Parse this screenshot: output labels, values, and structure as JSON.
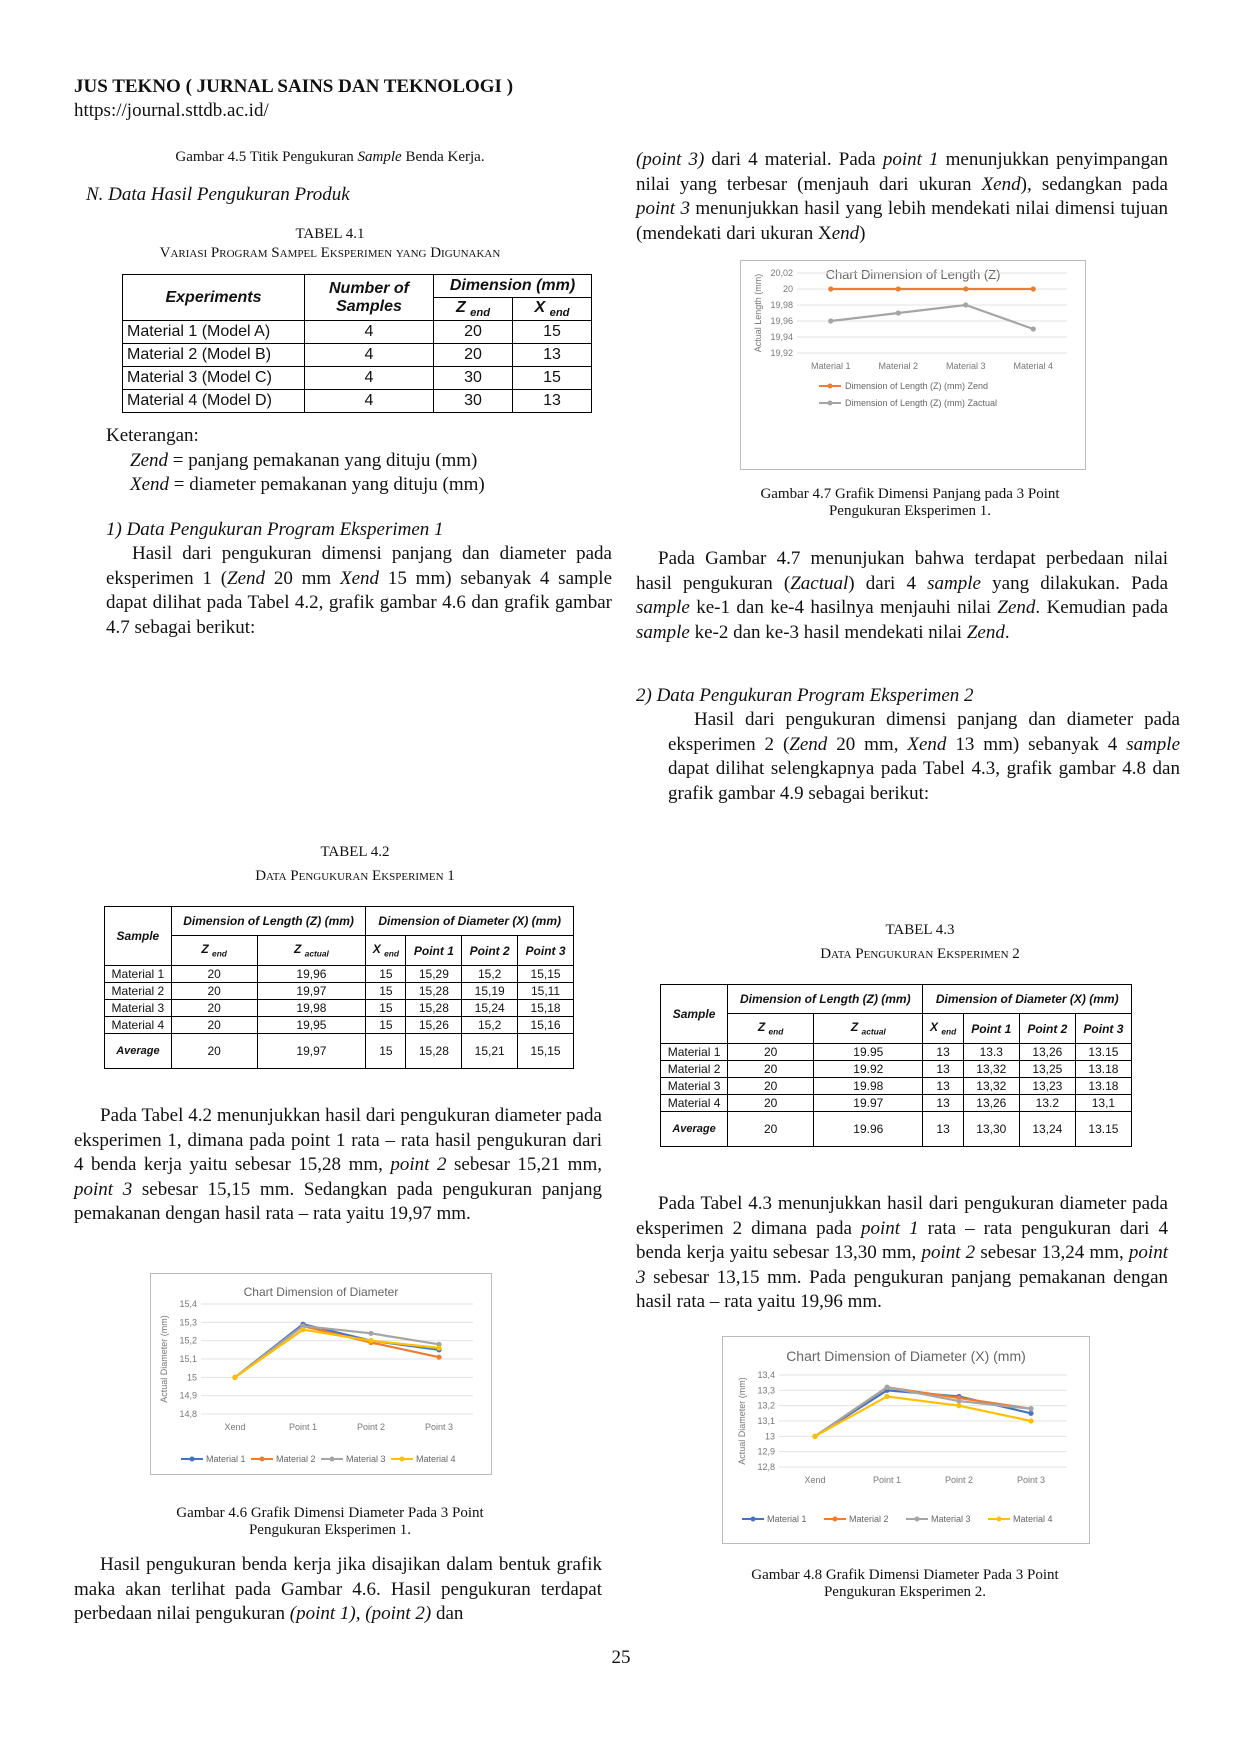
{
  "header": {
    "journal": "JUS TEKNO ( JURNAL SAINS DAN TEKNOLOGI )",
    "url": "https://journal.sttdb.ac.id/"
  },
  "fig45_caption": {
    "pre": "Gambar 4.5 Titik Pengukuran ",
    "em": "Sample",
    "post": " Benda Kerja."
  },
  "section_n": "N.   Data Hasil Pengukuran Produk",
  "table41": {
    "label": "TABEL 4.1",
    "title": "Variasi Program Sampel Eksperimen yang Digunakan",
    "h_experiments": "Experiments",
    "h_samples": "Number of Samples",
    "h_dimension": "Dimension (mm)",
    "h_z": "Z",
    "h_x": "X",
    "h_sub": "end",
    "rows": [
      [
        "Material 1 (Model A)",
        "4",
        "20",
        "15"
      ],
      [
        "Material 2 (Model B)",
        "4",
        "20",
        "13"
      ],
      [
        "Material 3 (Model C)",
        "4",
        "30",
        "15"
      ],
      [
        "Material 4 (Model D)",
        "4",
        "30",
        "13"
      ]
    ]
  },
  "keterangan": {
    "title": "Keterangan:",
    "zend_term": "Zend",
    "zend_def": " = panjang pemakanan yang dituju (mm)",
    "xend_term": "Xend",
    "xend_def": " = diameter pemakanan yang dituju (mm)"
  },
  "sub1_heading": "1)   Data Pengukuran Program Eksperimen 1",
  "sub1_p": {
    "a": "Hasil dari pengukuran dimensi panjang dan diameter pada eksperimen 1 (",
    "b": "Zend",
    "c": " 20 mm ",
    "d": "Xend",
    "e": " 15 mm) sebanyak 4 sample dapat dilihat pada Tabel 4.2, grafik gambar 4.6 dan grafik gambar 4.7 sebagai berikut:"
  },
  "table42": {
    "label": "TABEL 4.2",
    "title": "Data Pengukuran Eksperimen 1",
    "h_sample": "Sample",
    "h_length": "Dimension of Length (Z) (mm)",
    "h_diameter": "Dimension of Diameter (X) (mm)",
    "sub": {
      "zend": "end",
      "zact": "actual",
      "xend": "end"
    },
    "h_point1": "Point 1",
    "h_point2": "Point 2",
    "h_point3": "Point 3",
    "rows": [
      [
        "Material 1",
        "20",
        "19,96",
        "15",
        "15,29",
        "15,2",
        "15,15"
      ],
      [
        "Material 2",
        "20",
        "19,97",
        "15",
        "15,28",
        "15,19",
        "15,11"
      ],
      [
        "Material 3",
        "20",
        "19,98",
        "15",
        "15,28",
        "15,24",
        "15,18"
      ],
      [
        "Material 4",
        "20",
        "19,95",
        "15",
        "15,26",
        "15,2",
        "15,16"
      ]
    ],
    "avg": [
      "Average",
      "20",
      "19,97",
      "15",
      "15,28",
      "15,21",
      "15,15"
    ]
  },
  "p_t42": {
    "a": "Pada Tabel 4.2 menunjukkan hasil dari pengukuran diameter pada eksperimen 1, dimana pada point 1 rata – rata hasil pengukuran dari 4 benda kerja yaitu sebesar 15,28 mm, ",
    "b": "point 2",
    "c": " sebesar 15,21 mm, ",
    "d": "point 3",
    "e": " sebesar 15,15 mm. Sedangkan pada pengukuran panjang pemakanan dengan hasil rata – rata yaitu 19,97 mm."
  },
  "fig46_caption": {
    "l1": "Gambar 4.6 Grafik Dimensi Diameter Pada 3 Point",
    "l2": "Pengukuran Eksperimen 1."
  },
  "p_fig46": {
    "a": "Hasil pengukuran benda kerja jika disajikan dalam bentuk grafik maka akan terlihat pada Gambar 4.6. Hasil pengukuran terdapat perbedaan nilai pengukuran ",
    "b": "(point 1), (point 2)",
    "c": " dan"
  },
  "p_right_top": {
    "a": "(point 3)",
    "b": " dari 4 material. Pada ",
    "c": "point 1",
    "d": " menunjukkan penyimpangan nilai yang terbesar (menjauh dari ukuran ",
    "e": "Xend",
    "f": "), sedangkan pada ",
    "g": "point 3",
    "h": " menunjukkan hasil yang lebih mendekati nilai dimensi tujuan (mendekati dari ukuran X",
    "i": "end",
    "j": ")"
  },
  "fig47_caption": {
    "l1": "Gambar 4.7 Grafik Dimensi Panjang pada 3 Point",
    "l2": "Pengukuran Eksperimen 1."
  },
  "p_fig47": {
    "a": "Pada Gambar 4.7 menunjukan bahwa terdapat perbedaan nilai hasil pengukuran (",
    "b": "Zactual",
    "c": ") dari 4 ",
    "d": "sample",
    "e": " yang dilakukan. Pada ",
    "f": "sample",
    "g": " ke-1 dan ke-4 hasilnya menjauhi nilai ",
    "h": "Zend",
    "i": ". Kemudian pada ",
    "j": "sample",
    "k": " ke-2 dan ke-3 hasil mendekati nilai ",
    "l": "Zend",
    "m": "."
  },
  "sub2_heading": "2)     Data Pengukuran Program Eksperimen 2",
  "sub2_p": {
    "a": "Hasil dari pengukuran dimensi panjang dan diameter pada eksperimen 2 (",
    "b": "Zend",
    "c": " 20 mm, ",
    "d": "Xend",
    "e": " 13 mm) sebanyak 4 ",
    "f": "sample",
    "g": " dapat dilihat selengkapnya pada Tabel 4.3, grafik gambar 4.8 dan grafik gambar 4.9 sebagai berikut:"
  },
  "table43": {
    "label": "TABEL 4.3",
    "title": "Data Pengukuran Eksperimen 2",
    "h_sample": "Sample",
    "h_length": "Dimension of Length (Z) (mm)",
    "h_diameter": "Dimension of Diameter (X) (mm)",
    "sub": {
      "zend": "end",
      "zact": "actual",
      "xend": "end"
    },
    "h_point1": "Point 1",
    "h_point2": "Point 2",
    "h_point3": "Point 3",
    "rows": [
      [
        "Material 1",
        "20",
        "19.95",
        "13",
        "13.3",
        "13,26",
        "13.15"
      ],
      [
        "Material 2",
        "20",
        "19.92",
        "13",
        "13,32",
        "13,25",
        "13.18"
      ],
      [
        "Material 3",
        "20",
        "19.98",
        "13",
        "13,32",
        "13,23",
        "13.18"
      ],
      [
        "Material 4",
        "20",
        "19.97",
        "13",
        "13,26",
        "13.2",
        "13,1"
      ]
    ],
    "avg": [
      "Average",
      "20",
      "19.96",
      "13",
      "13,30",
      "13,24",
      "13.15"
    ]
  },
  "p_t43": {
    "a": "Pada Tabel 4.3 menunjukkan hasil dari pengukuran diameter pada eksperimen 2 dimana pada ",
    "b": "point 1",
    "c": " rata – rata pengukuran dari 4 benda kerja yaitu sebesar 13,30 mm, ",
    "d": "point 2",
    "e": " sebesar 13,24 mm, ",
    "f": "point 3",
    "g": " sebesar 13,15 mm. Pada pengukuran panjang pemakanan dengan hasil rata – rata yaitu 19,96 mm."
  },
  "fig48_caption": {
    "l1": "Gambar 4.8 Grafik Dimensi Diameter Pada 3 Point",
    "l2": "Pengukuran Eksperimen 2."
  },
  "page_number": "25",
  "chart_data": [
    {
      "id": "fig46",
      "type": "line",
      "title": "Chart Dimension of Diameter",
      "ylabel": "Actual Diameter (mm)",
      "categories": [
        "Xend",
        "Point 1",
        "Point 2",
        "Point 3"
      ],
      "ylim": [
        14.8,
        15.4
      ],
      "yticks": [
        "14,8",
        "14,9",
        "15",
        "15,1",
        "15,2",
        "15,3",
        "15,4"
      ],
      "legend_position": "bottom",
      "series": [
        {
          "name": "Material 1",
          "color": "#4472C4",
          "values": [
            15,
            15.29,
            15.2,
            15.15
          ]
        },
        {
          "name": "Material 2",
          "color": "#ED7D31",
          "values": [
            15,
            15.28,
            15.19,
            15.11
          ]
        },
        {
          "name": "Material 3",
          "color": "#A5A5A5",
          "values": [
            15,
            15.28,
            15.24,
            15.18
          ]
        },
        {
          "name": "Material 4",
          "color": "#FFC000",
          "values": [
            15,
            15.26,
            15.2,
            15.16
          ]
        }
      ]
    },
    {
      "id": "fig47",
      "type": "line",
      "title": "Chart Dimension of Length (Z)",
      "ylabel": "Actual Length (mm)",
      "categories": [
        "Material 1",
        "Material 2",
        "Material 3",
        "Material 4"
      ],
      "ylim": [
        19.92,
        20.02
      ],
      "yticks": [
        "19,92",
        "19,94",
        "19,96",
        "19,98",
        "20",
        "20,02"
      ],
      "legend_position": "bottom",
      "series": [
        {
          "name": "Dimension of Length (Z) (mm) Zend",
          "color": "#ED7D31",
          "values": [
            20,
            20,
            20,
            20
          ]
        },
        {
          "name": "Dimension of Length (Z) (mm) Zactual",
          "color": "#A5A5A5",
          "values": [
            19.96,
            19.97,
            19.98,
            19.95
          ]
        }
      ]
    },
    {
      "id": "fig48",
      "type": "line",
      "title": "Chart Dimension of Diameter (X) (mm)",
      "ylabel": "Actual Diameter (mm)",
      "categories": [
        "Xend",
        "Point 1",
        "Point 2",
        "Point 3"
      ],
      "ylim": [
        12.8,
        13.4
      ],
      "yticks": [
        "12,8",
        "12,9",
        "13",
        "13,1",
        "13,2",
        "13,3",
        "13,4"
      ],
      "legend_position": "bottom",
      "series": [
        {
          "name": "Material 1",
          "color": "#4472C4",
          "values": [
            13,
            13.3,
            13.26,
            13.15
          ]
        },
        {
          "name": "Material 2",
          "color": "#ED7D31",
          "values": [
            13,
            13.32,
            13.25,
            13.18
          ]
        },
        {
          "name": "Material 3",
          "color": "#A5A5A5",
          "values": [
            13,
            13.32,
            13.23,
            13.18
          ]
        },
        {
          "name": "Material 4",
          "color": "#FFC000",
          "values": [
            13,
            13.26,
            13.2,
            13.1
          ]
        }
      ]
    }
  ]
}
